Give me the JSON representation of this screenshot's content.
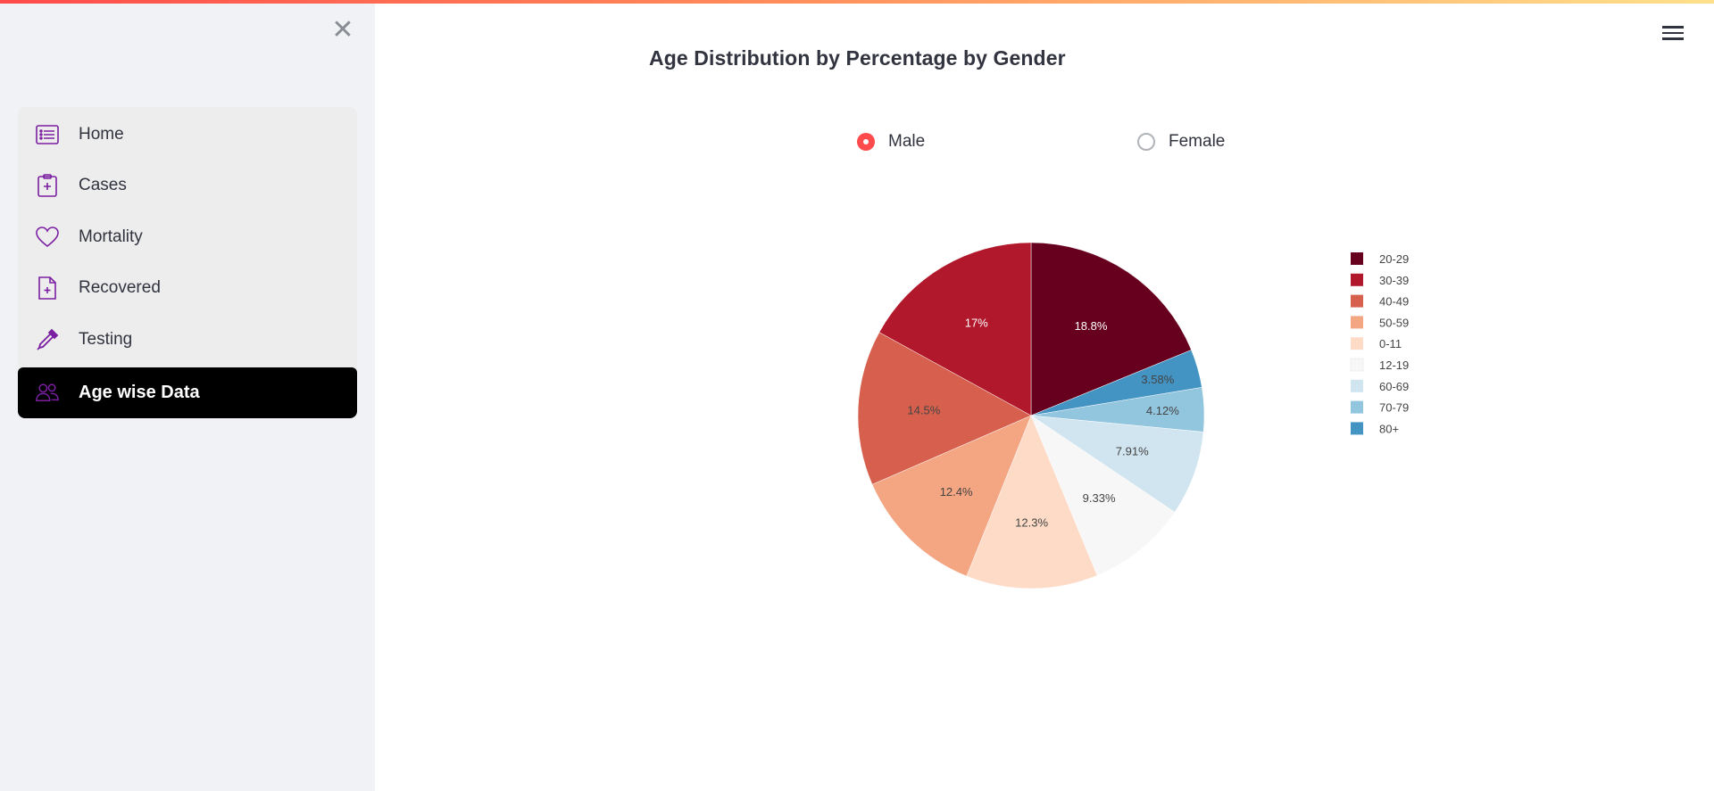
{
  "sidebar": {
    "close_icon": "close-icon",
    "items": [
      {
        "label": "Home",
        "icon": "list-icon"
      },
      {
        "label": "Cases",
        "icon": "clipboard-plus-icon"
      },
      {
        "label": "Mortality",
        "icon": "heart-icon"
      },
      {
        "label": "Recovered",
        "icon": "file-plus-icon"
      },
      {
        "label": "Testing",
        "icon": "eyedropper-icon"
      },
      {
        "label": "Age wise Data",
        "icon": "people-icon",
        "active": true
      }
    ],
    "accent_color": "#7b1fa2"
  },
  "header": {
    "menu_icon": "hamburger-icon"
  },
  "main": {
    "title": "Age Distribution by Percentage by Gender",
    "gender_options": [
      {
        "label": "Male",
        "selected": true
      },
      {
        "label": "Female",
        "selected": false
      }
    ]
  },
  "chart_data": {
    "type": "pie",
    "title": "",
    "slices": [
      {
        "label": "20-29",
        "value": 18.8,
        "text": "18.8%",
        "color": "#67001f",
        "text_color": "#ffffff"
      },
      {
        "label": "80+",
        "value": 3.58,
        "text": "3.58%",
        "color": "#4393c3",
        "text_color": "#444444"
      },
      {
        "label": "70-79",
        "value": 4.12,
        "text": "4.12%",
        "color": "#92c5de",
        "text_color": "#444444"
      },
      {
        "label": "60-69",
        "value": 7.91,
        "text": "7.91%",
        "color": "#d1e5f0",
        "text_color": "#444444"
      },
      {
        "label": "12-19",
        "value": 9.33,
        "text": "9.33%",
        "color": "#f7f7f7",
        "text_color": "#444444"
      },
      {
        "label": "0-11",
        "value": 12.3,
        "text": "12.3%",
        "color": "#fddbc7",
        "text_color": "#444444"
      },
      {
        "label": "50-59",
        "value": 12.4,
        "text": "12.4%",
        "color": "#f4a582",
        "text_color": "#444444"
      },
      {
        "label": "40-49",
        "value": 14.5,
        "text": "14.5%",
        "color": "#d6604d",
        "text_color": "#444444"
      },
      {
        "label": "30-39",
        "value": 17,
        "text": "17%",
        "color": "#b2182b",
        "text_color": "#ffffff"
      }
    ],
    "legend": {
      "placement": "right",
      "entries": [
        {
          "label": "20-29",
          "color": "#67001f"
        },
        {
          "label": "30-39",
          "color": "#b2182b"
        },
        {
          "label": "40-49",
          "color": "#d6604d"
        },
        {
          "label": "50-59",
          "color": "#f4a582"
        },
        {
          "label": "0-11",
          "color": "#fddbc7"
        },
        {
          "label": "12-19",
          "color": "#f7f7f7"
        },
        {
          "label": "60-69",
          "color": "#d1e5f0"
        },
        {
          "label": "70-79",
          "color": "#92c5de"
        },
        {
          "label": "80+",
          "color": "#4393c3"
        }
      ]
    }
  }
}
